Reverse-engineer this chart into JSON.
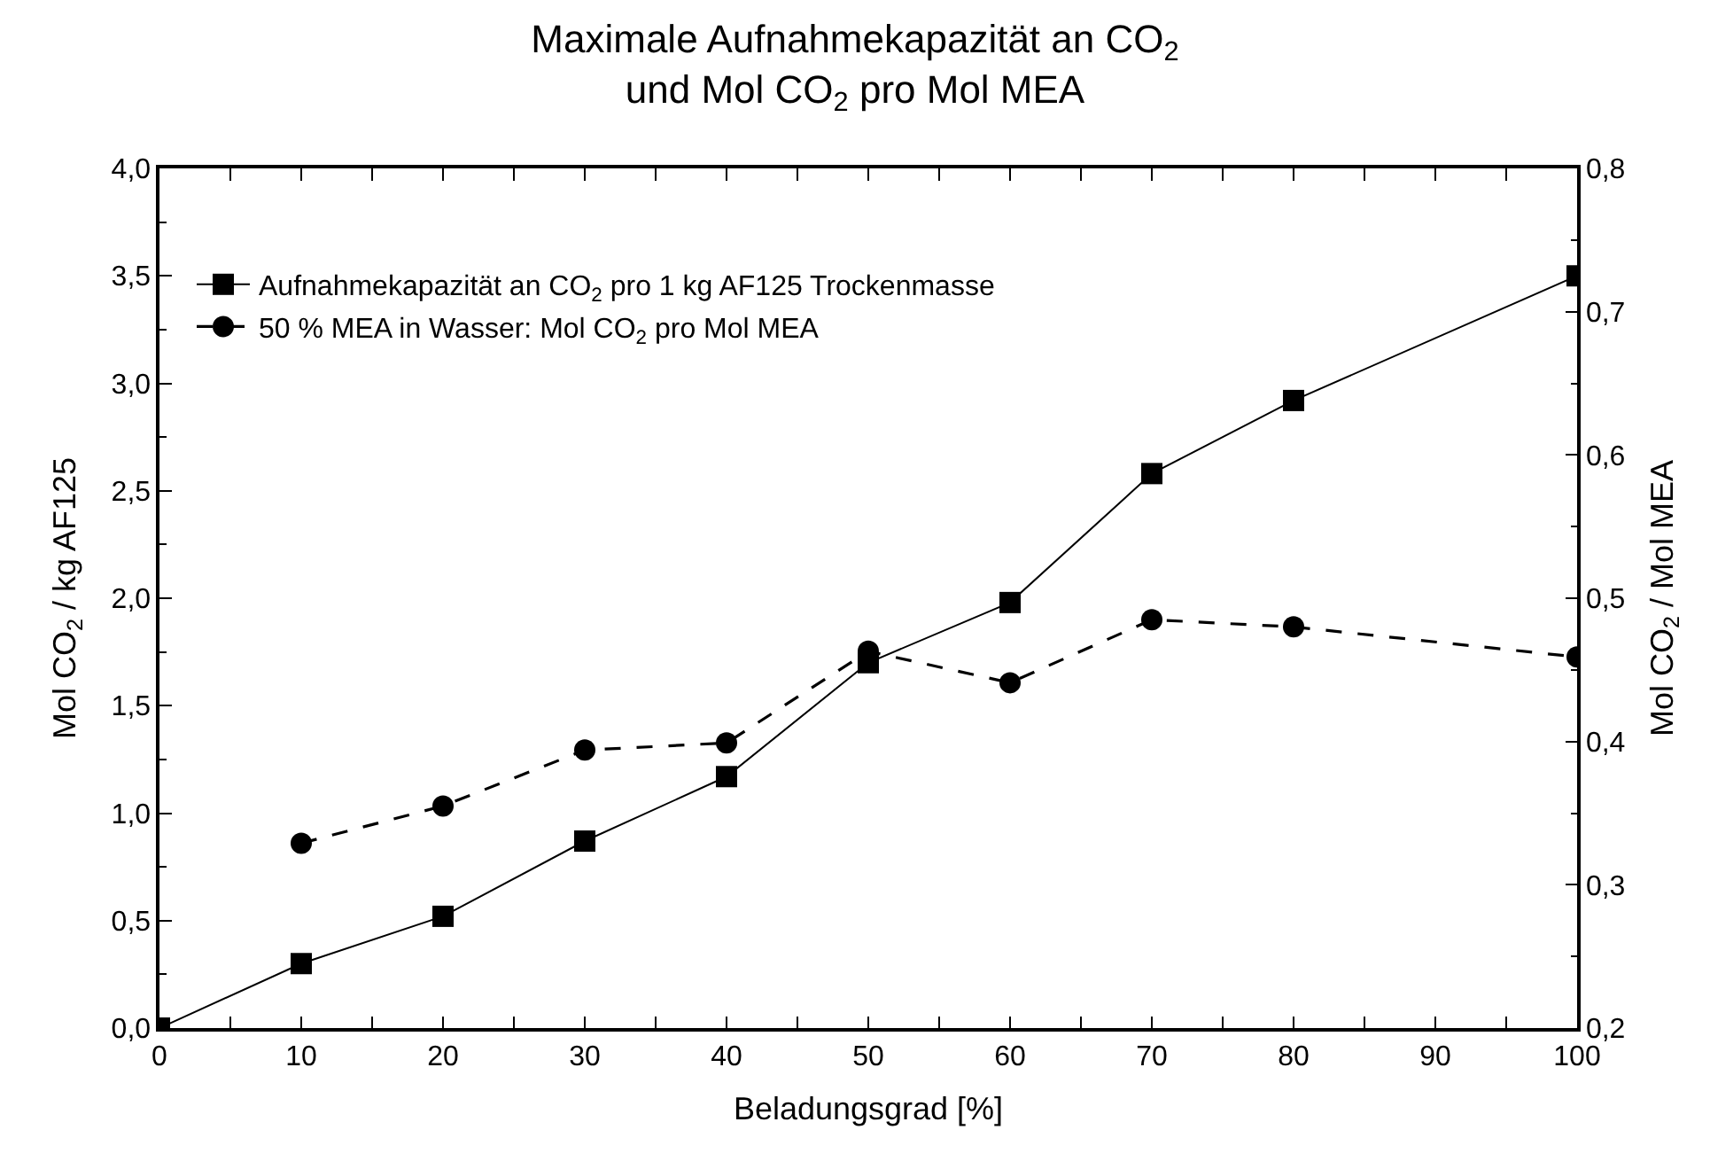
{
  "chart_data": {
    "type": "line",
    "title": "Maximale Aufnahmekapazität an CO$_{2}$\nund Mol CO$_{2}$ pro Mol MEA",
    "xlabel": "Beladungsgrad [%]",
    "ylabel": "Mol CO$_{2}$ / kg AF125",
    "y2label": "Mol CO$_{2}$ / Mol MEA",
    "series": [
      {
        "name": "Aufnahmekapazität an CO$_{2}$ pro 1 kg AF125 Trockenmasse",
        "color": "#000000",
        "x": [
          0,
          10,
          20,
          30,
          40,
          50,
          60,
          70,
          80,
          100
        ],
        "values": [
          0.0,
          0.3,
          0.52,
          0.87,
          1.17,
          1.7,
          1.98,
          2.58,
          2.92,
          3.5
        ],
        "marker": "square",
        "line_style": "solid"
      },
      {
        "name": "50 % MEA in Wasser: Mol CO$_{2}$ pro Mol MEA",
        "color": "#000000",
        "x": [
          10,
          20,
          30,
          40,
          50,
          60,
          70,
          80,
          100
        ],
        "values": [
          0.329,
          0.355,
          0.394,
          0.399,
          0.463,
          0.441,
          0.485,
          0.48,
          0.459
        ],
        "marker": "circle",
        "line_style": "dashed",
        "axis": "y2"
      }
    ],
    "xlim": [
      0,
      100
    ],
    "xticks": [
      0,
      10,
      20,
      30,
      40,
      50,
      60,
      70,
      80,
      90,
      100
    ],
    "ylim": [
      0,
      4
    ],
    "yticks": [
      {
        "value": 0,
        "label": "0,0"
      },
      {
        "value": 0.5,
        "label": "0,5"
      },
      {
        "value": 1,
        "label": "1,0"
      },
      {
        "value": 1.5,
        "label": "1,5"
      },
      {
        "value": 2,
        "label": "2,0"
      },
      {
        "value": 2.5,
        "label": "2,5"
      },
      {
        "value": 3,
        "label": "3,0"
      },
      {
        "value": 3.5,
        "label": "3,5"
      },
      {
        "value": 4,
        "label": "4,0"
      }
    ],
    "y2lim": [
      0.2,
      0.8
    ],
    "y2ticks": [
      {
        "value": 0.2,
        "label": "0,2"
      },
      {
        "value": 0.3,
        "label": "0,3"
      },
      {
        "value": 0.4,
        "label": "0,4"
      },
      {
        "value": 0.5,
        "label": "0,5"
      },
      {
        "value": 0.6,
        "label": "0,6"
      },
      {
        "value": 0.7,
        "label": "0,7"
      },
      {
        "value": 0.8,
        "label": "0,8"
      }
    ],
    "legend": "top left"
  }
}
